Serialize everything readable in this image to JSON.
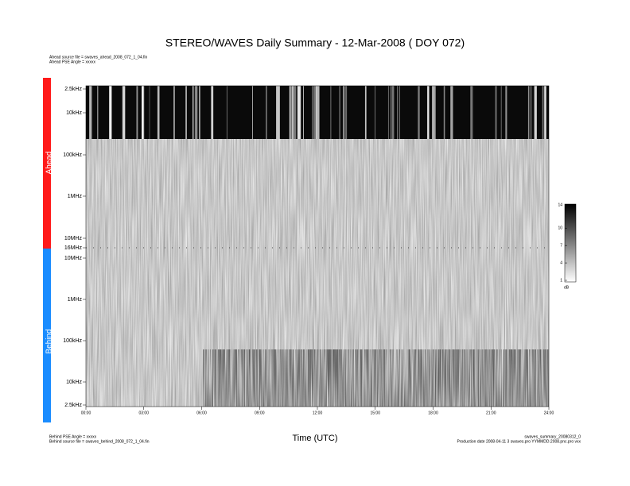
{
  "header": {
    "title": "STEREO/WAVES Daily Summary - 12-Mar-2008 ( DOY 072)",
    "ahead_source": "Ahead source file = swaves_ahead_2008_072_1_04.fin",
    "ahead_angle": "Ahead PSE Angle = xxxxx"
  },
  "panels": {
    "ahead": "Ahead",
    "behind": "Behind"
  },
  "y_labels": {
    "ahead": [
      "2.5kHz",
      "10kHz",
      "100kHz",
      "1MHz",
      "10MHz",
      "16MHz"
    ],
    "behind": [
      "10MHz",
      "1MHz",
      "100kHz",
      "10kHz",
      "2.5kHz"
    ]
  },
  "x_ticks": [
    "00:00",
    "03:00",
    "06:00",
    "09:00",
    "12:00",
    "15:00",
    "18:00",
    "21:00",
    "24:00"
  ],
  "x_label": "Time (UTC)",
  "colorbar": {
    "ticks": [
      1,
      4,
      7,
      10,
      14
    ],
    "unit": "dB"
  },
  "footer": {
    "behind_angle": "Behind PSE Angle = xxxxx",
    "behind_source": "Behind source file = swaves_behind_2008_072_1_04.fin",
    "summary_file": "swaves_summary_20080312_0",
    "production": "Production date 2008-04-11 3 swaves.pro YYMMDD.2008.pnc.pro vxx"
  }
}
